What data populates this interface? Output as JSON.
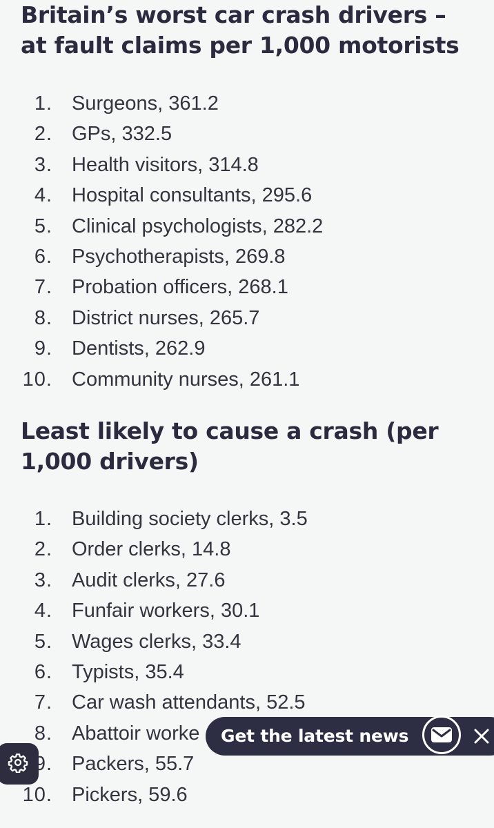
{
  "section_worst": {
    "title": "Britain’s worst car crash drivers – at fault claims per 1,000 motorists",
    "items": [
      {
        "num": "1.",
        "text": "Surgeons, 361.2"
      },
      {
        "num": "2.",
        "text": "GPs, 332.5"
      },
      {
        "num": "3.",
        "text": "Health visitors, 314.8"
      },
      {
        "num": "4.",
        "text": "Hospital consultants, 295.6"
      },
      {
        "num": "5.",
        "text": "Clinical psychologists, 282.2"
      },
      {
        "num": "6.",
        "text": "Psychotherapists, 269.8"
      },
      {
        "num": "7.",
        "text": "Probation officers, 268.1"
      },
      {
        "num": "8.",
        "text": "District nurses, 265.7"
      },
      {
        "num": "9.",
        "text": "Dentists, 262.9"
      },
      {
        "num": "10.",
        "text": "Community nurses, 261.1"
      }
    ]
  },
  "section_least": {
    "title": "Least likely to cause a crash (per 1,000 drivers)",
    "items": [
      {
        "num": "1.",
        "text": "Building society clerks, 3.5"
      },
      {
        "num": "2.",
        "text": "Order clerks, 14.8"
      },
      {
        "num": "3.",
        "text": "Audit clerks, 27.6"
      },
      {
        "num": "4.",
        "text": "Funfair workers, 30.1"
      },
      {
        "num": "5.",
        "text": "Wages clerks, 33.4"
      },
      {
        "num": "6.",
        "text": "Typists, 35.4"
      },
      {
        "num": "7.",
        "text": "Car wash attendants, 52.5"
      },
      {
        "num": "8.",
        "text": "Abattoir worke"
      },
      {
        "num": "9.",
        "text": "Packers, 55.7"
      },
      {
        "num": "10.",
        "text": "Pickers, 59.6"
      }
    ]
  },
  "news_banner": {
    "label": "Get the latest news",
    "mail_icon": "envelope-icon",
    "close_icon": "close-icon"
  },
  "settings": {
    "icon": "gear-icon"
  },
  "colors": {
    "background": "#f5f6f6",
    "heading": "#2b2b3f",
    "text": "#34343e",
    "banner": "#2d2d44"
  }
}
